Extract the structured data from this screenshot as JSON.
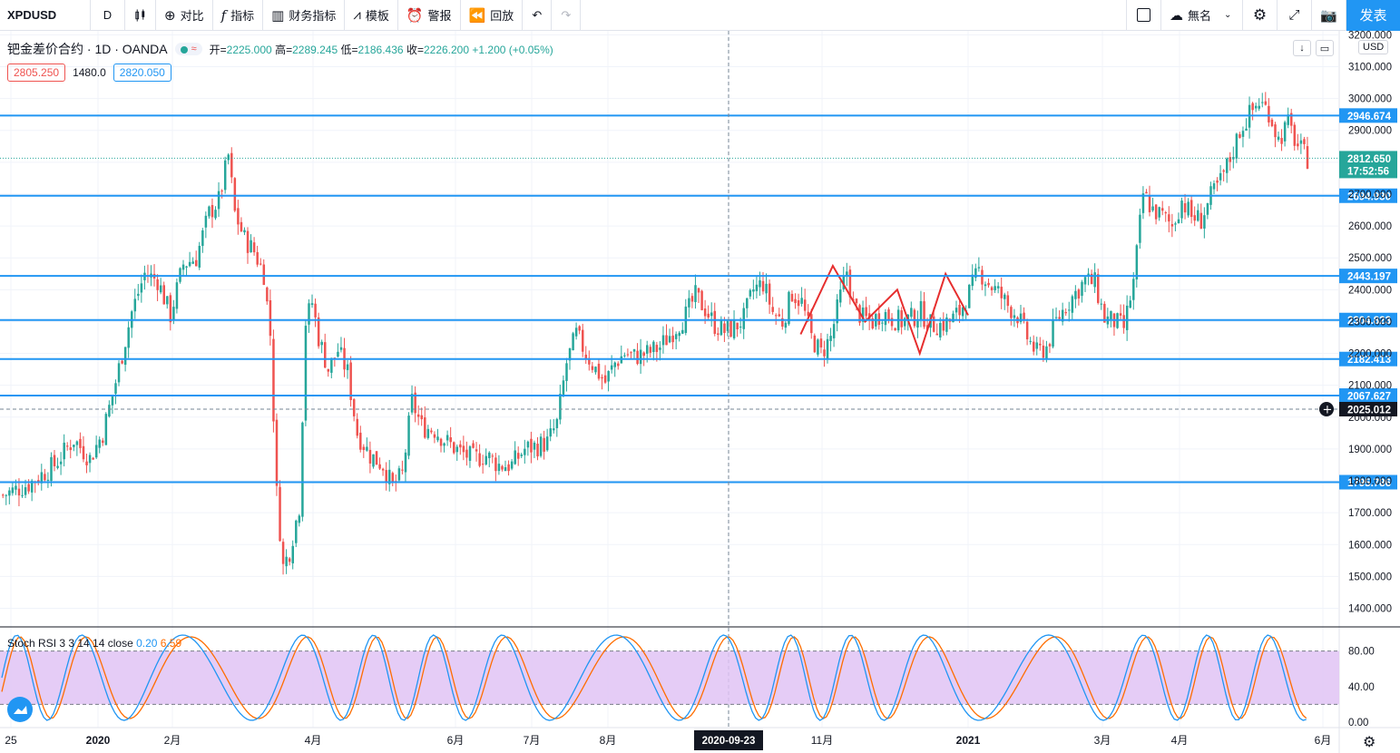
{
  "toolbar": {
    "symbol": "XPDUSD",
    "interval": "D",
    "compare": "对比",
    "indicators": "指标",
    "financials": "财务指标",
    "templates": "模板",
    "alert": "警报",
    "replay": "回放",
    "layout_name": "無名",
    "publish": "发表"
  },
  "legend": {
    "title": "钯金差价合约 · 1D · OANDA",
    "open_label": "开",
    "open": "2225.000",
    "high_label": "高",
    "high": "2289.245",
    "low_label": "低",
    "low": "2186.436",
    "close_label": "收",
    "close": "2226.200",
    "change": "+1.200 (+0.05%)",
    "bid": "2805.250",
    "spread": "1480.0",
    "ask": "2820.050"
  },
  "axis": {
    "currency": "USD"
  },
  "indicator": {
    "name": "Stoch RSI 3 3 14 14 close",
    "k": "0.20",
    "d": "6.59"
  },
  "colors": {
    "up": "#26a69a",
    "down": "#ef5350",
    "hline": "#2196f3",
    "k_line": "#2196f3",
    "d_line": "#ff6d00",
    "band": "#e1c3f5"
  },
  "chart_data": {
    "type": "candlestick",
    "ylim": [
      1330,
      3220
    ],
    "y_ticks": [
      "1400.000",
      "1500.000",
      "1600.000",
      "1700.000",
      "1800.000",
      "1900.000",
      "2000.000",
      "2100.000",
      "2200.000",
      "2300.000",
      "2400.000",
      "2500.000",
      "2600.000",
      "2700.000",
      "2800.000",
      "2900.000",
      "3000.000",
      "3100.000",
      "3200.000"
    ],
    "x_ticks": [
      "25",
      "2020",
      "2月",
      "4月",
      "6月",
      "7月",
      "8月",
      "2020-09-23",
      "11月",
      "2021",
      "3月",
      "4月",
      "6月"
    ],
    "horizontal_levels": [
      {
        "value": 2946.674,
        "label": "2946.674"
      },
      {
        "value": 2694.93,
        "label": "2694.930"
      },
      {
        "value": 2443.197,
        "label": "2443.197"
      },
      {
        "value": 2304.823,
        "label": "2304.823"
      },
      {
        "value": 2182.413,
        "label": "2182.413"
      },
      {
        "value": 2067.627,
        "label": "2067.627"
      },
      {
        "value": 1795.786,
        "label": "1795.786"
      }
    ],
    "last_price": {
      "value": 2812.65,
      "label": "2812.650",
      "countdown": "17:52:56"
    },
    "crosshair": {
      "value": 2025.012,
      "label": "2025.012",
      "date": "2020-09-23"
    },
    "price_path": [
      [
        0,
        1755
      ],
      [
        8,
        1790
      ],
      [
        16,
        1850
      ],
      [
        22,
        1930
      ],
      [
        27,
        1870
      ],
      [
        31,
        1950
      ],
      [
        35,
        2110
      ],
      [
        40,
        2330
      ],
      [
        44,
        2450
      ],
      [
        48,
        2430
      ],
      [
        52,
        2320
      ],
      [
        56,
        2480
      ],
      [
        60,
        2500
      ],
      [
        64,
        2640
      ],
      [
        67,
        2680
      ],
      [
        70,
        2820
      ],
      [
        72,
        2640
      ],
      [
        75,
        2560
      ],
      [
        78,
        2520
      ],
      [
        81,
        2450
      ],
      [
        83,
        2260
      ],
      [
        85,
        1760
      ],
      [
        87,
        1530
      ],
      [
        89,
        1580
      ],
      [
        92,
        1720
      ],
      [
        94,
        2300
      ],
      [
        96,
        2360
      ],
      [
        98,
        2250
      ],
      [
        101,
        2150
      ],
      [
        104,
        2210
      ],
      [
        107,
        2140
      ],
      [
        110,
        1950
      ],
      [
        114,
        1880
      ],
      [
        118,
        1850
      ],
      [
        121,
        1780
      ],
      [
        124,
        1820
      ],
      [
        127,
        2050
      ],
      [
        130,
        1970
      ],
      [
        134,
        1960
      ],
      [
        138,
        1920
      ],
      [
        142,
        1890
      ],
      [
        146,
        1870
      ],
      [
        150,
        1880
      ],
      [
        154,
        1850
      ],
      [
        158,
        1850
      ],
      [
        162,
        1900
      ],
      [
        166,
        1910
      ],
      [
        169,
        1920
      ],
      [
        172,
        1980
      ],
      [
        175,
        2170
      ],
      [
        178,
        2260
      ],
      [
        181,
        2200
      ],
      [
        184,
        2150
      ],
      [
        187,
        2110
      ],
      [
        190,
        2170
      ],
      [
        193,
        2200
      ],
      [
        196,
        2190
      ],
      [
        200,
        2200
      ],
      [
        204,
        2220
      ],
      [
        208,
        2270
      ],
      [
        212,
        2320
      ],
      [
        215,
        2380
      ],
      [
        218,
        2340
      ],
      [
        221,
        2290
      ],
      [
        224,
        2270
      ],
      [
        227,
        2280
      ],
      [
        230,
        2310
      ],
      [
        233,
        2400
      ],
      [
        236,
        2420
      ],
      [
        239,
        2330
      ],
      [
        242,
        2300
      ],
      [
        245,
        2390
      ],
      [
        248,
        2360
      ],
      [
        251,
        2250
      ],
      [
        254,
        2200
      ],
      [
        257,
        2250
      ],
      [
        260,
        2380
      ],
      [
        262,
        2460
      ],
      [
        264,
        2350
      ],
      [
        267,
        2310
      ],
      [
        270,
        2300
      ],
      [
        273,
        2330
      ],
      [
        276,
        2310
      ],
      [
        279,
        2300
      ],
      [
        282,
        2310
      ],
      [
        285,
        2330
      ],
      [
        288,
        2290
      ],
      [
        291,
        2290
      ],
      [
        294,
        2300
      ],
      [
        297,
        2330
      ],
      [
        300,
        2390
      ],
      [
        303,
        2460
      ],
      [
        306,
        2420
      ],
      [
        309,
        2390
      ],
      [
        312,
        2350
      ],
      [
        315,
        2320
      ],
      [
        318,
        2250
      ],
      [
        321,
        2200
      ],
      [
        324,
        2220
      ],
      [
        327,
        2300
      ],
      [
        330,
        2350
      ],
      [
        333,
        2390
      ],
      [
        336,
        2430
      ],
      [
        339,
        2420
      ],
      [
        342,
        2310
      ],
      [
        345,
        2300
      ],
      [
        348,
        2280
      ],
      [
        351,
        2420
      ],
      [
        354,
        2700
      ],
      [
        357,
        2650
      ],
      [
        360,
        2630
      ],
      [
        363,
        2600
      ],
      [
        366,
        2680
      ],
      [
        369,
        2630
      ],
      [
        372,
        2620
      ],
      [
        375,
        2690
      ],
      [
        378,
        2740
      ],
      [
        381,
        2810
      ],
      [
        384,
        2900
      ],
      [
        387,
        2950
      ],
      [
        390,
        2990
      ],
      [
        393,
        2960
      ],
      [
        396,
        2870
      ],
      [
        399,
        2920
      ],
      [
        402,
        2850
      ],
      [
        405,
        2812
      ]
    ],
    "zigzag": [
      [
        248,
        2260
      ],
      [
        258,
        2475
      ],
      [
        268,
        2300
      ],
      [
        278,
        2400
      ],
      [
        285,
        2200
      ],
      [
        293,
        2450
      ],
      [
        300,
        2320
      ]
    ],
    "stoch_rsi": {
      "ylim": [
        0,
        100
      ],
      "y_ticks": [
        "80.00",
        "40.00",
        "0.00"
      ],
      "upper_band": 80,
      "lower_band": 20
    }
  }
}
